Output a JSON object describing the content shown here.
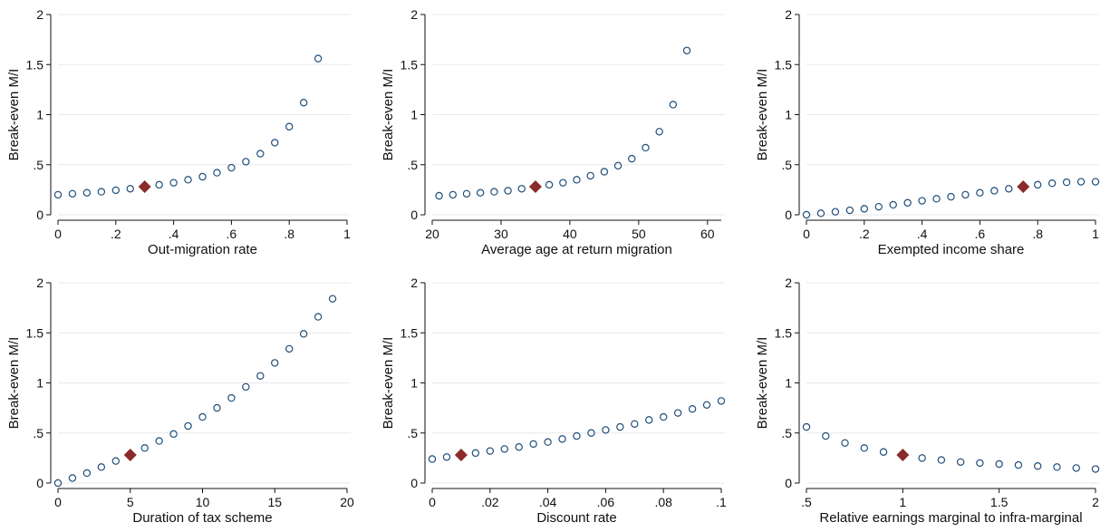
{
  "colors": {
    "marker": "#1f4e79",
    "highlight": "#8b2a2a",
    "grid": "#e9e9e9",
    "axis": "#111111"
  },
  "chart_data": [
    {
      "type": "scatter",
      "xlabel": "Out-migration rate",
      "ylabel": "Break-even M/I",
      "xlim": [
        0,
        1
      ],
      "ylim": [
        0,
        2
      ],
      "xticks": [
        {
          "v": 0,
          "label": "0"
        },
        {
          "v": 0.2,
          "label": ".2"
        },
        {
          "v": 0.4,
          "label": ".4"
        },
        {
          "v": 0.6,
          "label": ".6"
        },
        {
          "v": 0.8,
          "label": ".8"
        },
        {
          "v": 1,
          "label": "1"
        }
      ],
      "yticks": [
        {
          "v": 0,
          "label": "0"
        },
        {
          "v": 0.5,
          "label": ".5"
        },
        {
          "v": 1,
          "label": "1"
        },
        {
          "v": 1.5,
          "label": "1.5"
        },
        {
          "v": 2,
          "label": "2"
        }
      ],
      "grid": true,
      "x": [
        0,
        0.05,
        0.1,
        0.15,
        0.2,
        0.25,
        0.35,
        0.4,
        0.45,
        0.5,
        0.55,
        0.6,
        0.65,
        0.7,
        0.75,
        0.8,
        0.85,
        0.9
      ],
      "y": [
        0.2,
        0.21,
        0.22,
        0.23,
        0.245,
        0.26,
        0.3,
        0.32,
        0.35,
        0.38,
        0.42,
        0.47,
        0.53,
        0.61,
        0.72,
        0.88,
        1.12,
        1.56
      ],
      "highlight": {
        "x": 0.3,
        "y": 0.28
      }
    },
    {
      "type": "scatter",
      "xlabel": "Average age at return migration",
      "ylabel": "Break-even M/I",
      "xlim": [
        20,
        62
      ],
      "ylim": [
        0,
        2
      ],
      "xticks": [
        {
          "v": 20,
          "label": "20"
        },
        {
          "v": 30,
          "label": "30"
        },
        {
          "v": 40,
          "label": "40"
        },
        {
          "v": 50,
          "label": "50"
        },
        {
          "v": 60,
          "label": "60"
        }
      ],
      "yticks": [
        {
          "v": 0,
          "label": "0"
        },
        {
          "v": 0.5,
          "label": ".5"
        },
        {
          "v": 1,
          "label": "1"
        },
        {
          "v": 1.5,
          "label": "1.5"
        },
        {
          "v": 2,
          "label": "2"
        }
      ],
      "grid": true,
      "x": [
        21,
        23,
        25,
        27,
        29,
        31,
        33,
        37,
        39,
        41,
        43,
        45,
        47,
        49,
        51,
        53,
        55,
        57
      ],
      "y": [
        0.19,
        0.2,
        0.21,
        0.22,
        0.23,
        0.24,
        0.26,
        0.3,
        0.32,
        0.35,
        0.39,
        0.43,
        0.49,
        0.56,
        0.67,
        0.83,
        1.1,
        1.64
      ],
      "highlight": {
        "x": 35,
        "y": 0.28
      }
    },
    {
      "type": "scatter",
      "xlabel": "Exempted income share",
      "ylabel": "Break-even M/I",
      "xlim": [
        0,
        1
      ],
      "ylim": [
        0,
        2
      ],
      "xticks": [
        {
          "v": 0,
          "label": "0"
        },
        {
          "v": 0.2,
          "label": ".2"
        },
        {
          "v": 0.4,
          "label": ".4"
        },
        {
          "v": 0.6,
          "label": ".6"
        },
        {
          "v": 0.8,
          "label": ".8"
        },
        {
          "v": 1,
          "label": "1"
        }
      ],
      "yticks": [
        {
          "v": 0,
          "label": "0"
        },
        {
          "v": 0.5,
          "label": ".5"
        },
        {
          "v": 1,
          "label": "1"
        },
        {
          "v": 1.5,
          "label": "1.5"
        },
        {
          "v": 2,
          "label": "2"
        }
      ],
      "grid": true,
      "x": [
        0,
        0.05,
        0.1,
        0.15,
        0.2,
        0.25,
        0.3,
        0.35,
        0.4,
        0.45,
        0.5,
        0.55,
        0.6,
        0.65,
        0.7,
        0.8,
        0.85,
        0.9,
        0.95,
        1
      ],
      "y": [
        0,
        0.015,
        0.03,
        0.045,
        0.06,
        0.08,
        0.1,
        0.12,
        0.14,
        0.16,
        0.18,
        0.2,
        0.22,
        0.24,
        0.26,
        0.3,
        0.315,
        0.325,
        0.33,
        0.33
      ],
      "highlight": {
        "x": 0.75,
        "y": 0.28
      }
    },
    {
      "type": "scatter",
      "xlabel": "Duration of tax scheme",
      "ylabel": "Break-even M/I",
      "xlim": [
        0,
        20
      ],
      "ylim": [
        0,
        2
      ],
      "xticks": [
        {
          "v": 0,
          "label": "0"
        },
        {
          "v": 5,
          "label": "5"
        },
        {
          "v": 10,
          "label": "10"
        },
        {
          "v": 15,
          "label": "15"
        },
        {
          "v": 20,
          "label": "20"
        }
      ],
      "yticks": [
        {
          "v": 0,
          "label": "0"
        },
        {
          "v": 0.5,
          "label": ".5"
        },
        {
          "v": 1,
          "label": "1"
        },
        {
          "v": 1.5,
          "label": "1.5"
        },
        {
          "v": 2,
          "label": "2"
        }
      ],
      "grid": true,
      "x": [
        0,
        1,
        2,
        3,
        4,
        6,
        7,
        8,
        9,
        10,
        11,
        12,
        13,
        14,
        15,
        16,
        17,
        18,
        19
      ],
      "y": [
        0,
        0.05,
        0.1,
        0.16,
        0.22,
        0.35,
        0.42,
        0.49,
        0.57,
        0.66,
        0.75,
        0.85,
        0.96,
        1.07,
        1.2,
        1.34,
        1.49,
        1.66,
        1.84
      ],
      "highlight": {
        "x": 5,
        "y": 0.28
      }
    },
    {
      "type": "scatter",
      "xlabel": "Discount rate",
      "ylabel": "Break-even M/I",
      "xlim": [
        0,
        0.1
      ],
      "ylim": [
        0,
        2
      ],
      "xticks": [
        {
          "v": 0,
          "label": "0"
        },
        {
          "v": 0.02,
          "label": ".02"
        },
        {
          "v": 0.04,
          "label": ".04"
        },
        {
          "v": 0.06,
          "label": ".06"
        },
        {
          "v": 0.08,
          "label": ".08"
        },
        {
          "v": 0.1,
          "label": ".1"
        }
      ],
      "yticks": [
        {
          "v": 0,
          "label": "0"
        },
        {
          "v": 0.5,
          "label": ".5"
        },
        {
          "v": 1,
          "label": "1"
        },
        {
          "v": 1.5,
          "label": "1.5"
        },
        {
          "v": 2,
          "label": "2"
        }
      ],
      "grid": true,
      "x": [
        0,
        0.005,
        0.015,
        0.02,
        0.025,
        0.03,
        0.035,
        0.04,
        0.045,
        0.05,
        0.055,
        0.06,
        0.065,
        0.07,
        0.075,
        0.08,
        0.085,
        0.09,
        0.095,
        0.1
      ],
      "y": [
        0.24,
        0.26,
        0.3,
        0.32,
        0.34,
        0.36,
        0.39,
        0.41,
        0.44,
        0.47,
        0.5,
        0.53,
        0.56,
        0.59,
        0.63,
        0.66,
        0.7,
        0.74,
        0.78,
        0.82
      ],
      "highlight": {
        "x": 0.01,
        "y": 0.28
      }
    },
    {
      "type": "scatter",
      "xlabel": "Relative earnings marginal to infra-marginal",
      "ylabel": "Break-even M/I",
      "xlim": [
        0.5,
        2
      ],
      "ylim": [
        0,
        2
      ],
      "xticks": [
        {
          "v": 0.5,
          "label": ".5"
        },
        {
          "v": 1,
          "label": "1"
        },
        {
          "v": 1.5,
          "label": "1.5"
        },
        {
          "v": 2,
          "label": "2"
        }
      ],
      "yticks": [
        {
          "v": 0,
          "label": "0"
        },
        {
          "v": 0.5,
          "label": ".5"
        },
        {
          "v": 1,
          "label": "1"
        },
        {
          "v": 1.5,
          "label": "1.5"
        },
        {
          "v": 2,
          "label": "2"
        }
      ],
      "grid": true,
      "x": [
        0.5,
        0.6,
        0.7,
        0.8,
        0.9,
        1.1,
        1.2,
        1.3,
        1.4,
        1.5,
        1.6,
        1.7,
        1.8,
        1.9,
        2
      ],
      "y": [
        0.56,
        0.47,
        0.4,
        0.35,
        0.31,
        0.25,
        0.23,
        0.21,
        0.2,
        0.19,
        0.18,
        0.17,
        0.16,
        0.15,
        0.14
      ],
      "highlight": {
        "x": 1,
        "y": 0.28
      }
    }
  ]
}
